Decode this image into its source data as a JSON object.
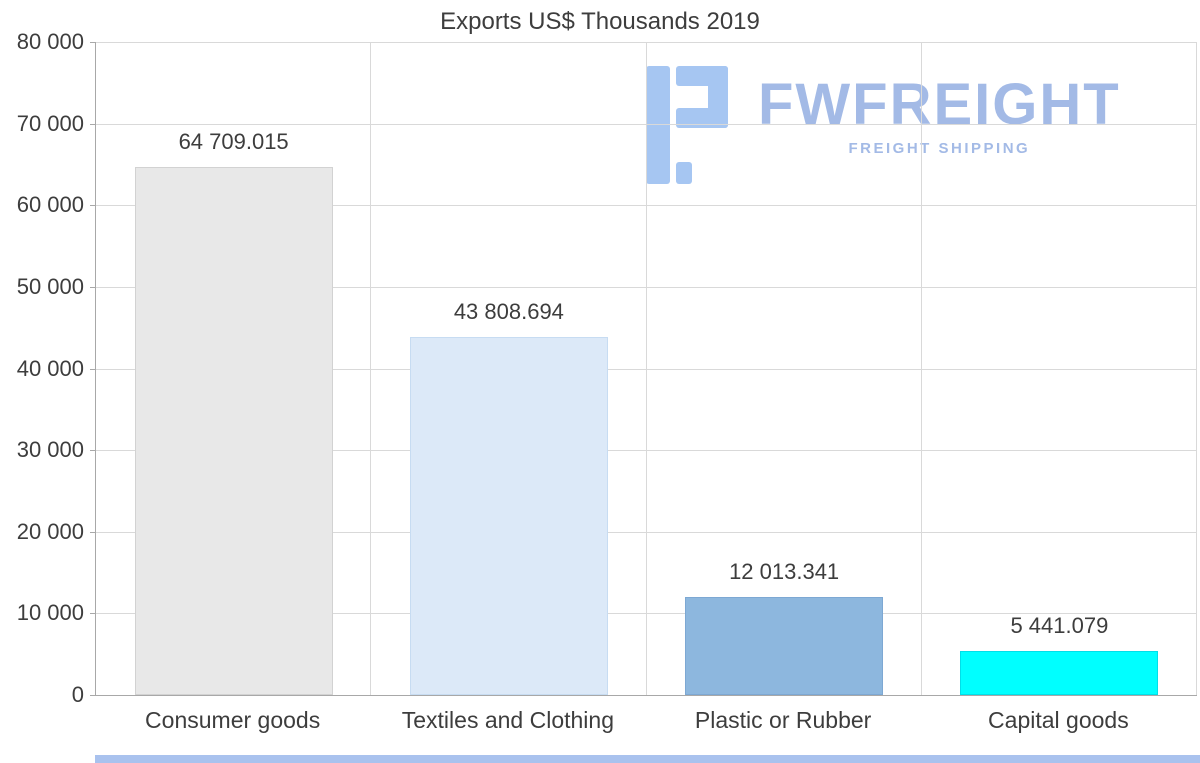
{
  "watermark": {
    "brand": "FWFREIGHT",
    "tagline": "FREIGHT SHIPPING",
    "color": "#a3bae6",
    "icon_color": "#a6c6f2"
  },
  "accent_strip_color": "#a9c2ee",
  "chart_data": {
    "type": "bar",
    "title": "Exports US$ Thousands 2019",
    "categories": [
      "Consumer goods",
      "Textiles and Clothing",
      "Plastic or Rubber",
      "Capital goods"
    ],
    "values": [
      64709.015,
      43808.694,
      12013.341,
      5441.079
    ],
    "value_labels": [
      "64 709.015",
      "43 808.694",
      "12 013.341",
      "5 441.079"
    ],
    "bar_colors": [
      "#e8e8e8",
      "#dce9f8",
      "#8db7de",
      "#00ffff"
    ],
    "bar_border_colors": [
      "#d2d2d2",
      "#c7dcf2",
      "#7da8d3",
      "#00dfe9"
    ],
    "xlabel": "",
    "ylabel": "",
    "ylim": [
      0,
      80000
    ],
    "ytick_step": 10000,
    "ytick_labels": [
      "0",
      "10 000",
      "20 000",
      "30 000",
      "40 000",
      "50 000",
      "60 000",
      "70 000",
      "80 000"
    ],
    "grid": true,
    "legend": false
  }
}
